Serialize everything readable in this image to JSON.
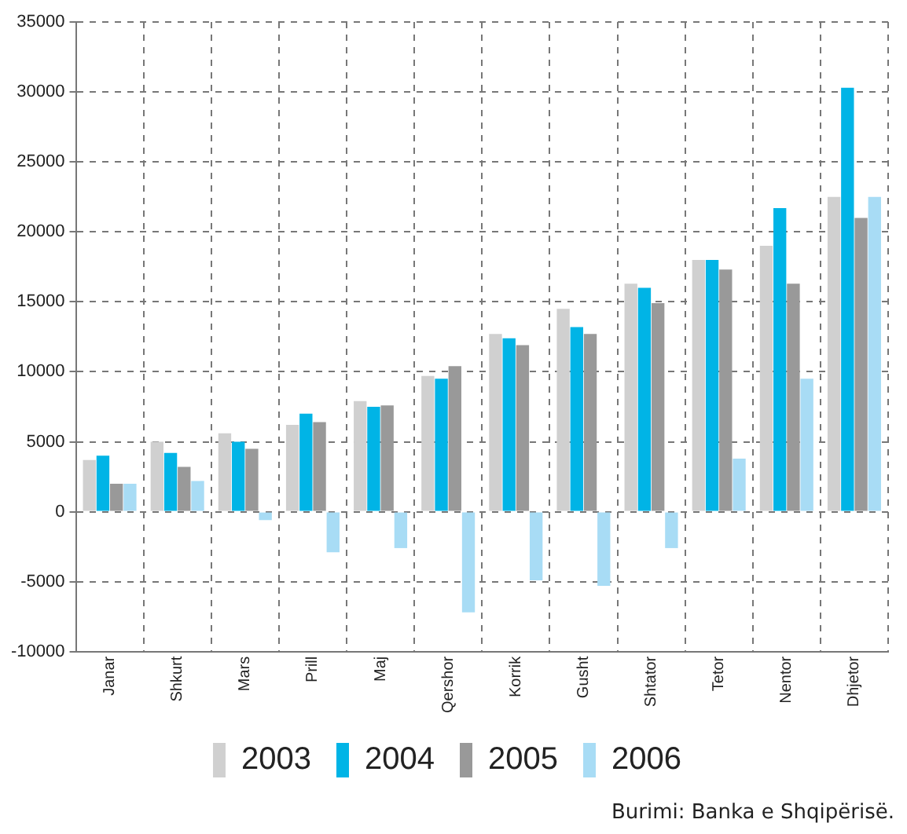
{
  "chart_data": {
    "type": "bar",
    "categories": [
      "Janar",
      "Shkurt",
      "Mars",
      "Prill",
      "Maj",
      "Qershor",
      "Korrik",
      "Gusht",
      "Shtator",
      "Tetor",
      "Nentor",
      "Dhjetor"
    ],
    "series": [
      {
        "name": "2003",
        "color": "#d0d0d0",
        "values": [
          3700,
          5000,
          5600,
          6200,
          7900,
          9700,
          12700,
          14500,
          16300,
          18000,
          19000,
          22500
        ]
      },
      {
        "name": "2004",
        "color": "#00b4e6",
        "values": [
          4000,
          4200,
          5000,
          7000,
          7500,
          9500,
          12400,
          13200,
          16000,
          18000,
          21700,
          30300
        ]
      },
      {
        "name": "2005",
        "color": "#999999",
        "values": [
          2000,
          3200,
          4500,
          6400,
          7600,
          10400,
          11900,
          12700,
          14900,
          17300,
          16300,
          21000
        ]
      },
      {
        "name": "2006",
        "color": "#a8dcf5",
        "values": [
          2000,
          2200,
          -600,
          -2900,
          -2600,
          -7200,
          -4900,
          -5300,
          -2600,
          3800,
          9500,
          22500
        ]
      }
    ],
    "ylim": [
      -10000,
      35000
    ],
    "yticks": [
      -10000,
      -5000,
      0,
      5000,
      10000,
      15000,
      20000,
      25000,
      30000,
      35000
    ],
    "grid": true,
    "legend": "bottom",
    "annotations": [
      "Burimi: Banka e Shqipërisë."
    ]
  }
}
